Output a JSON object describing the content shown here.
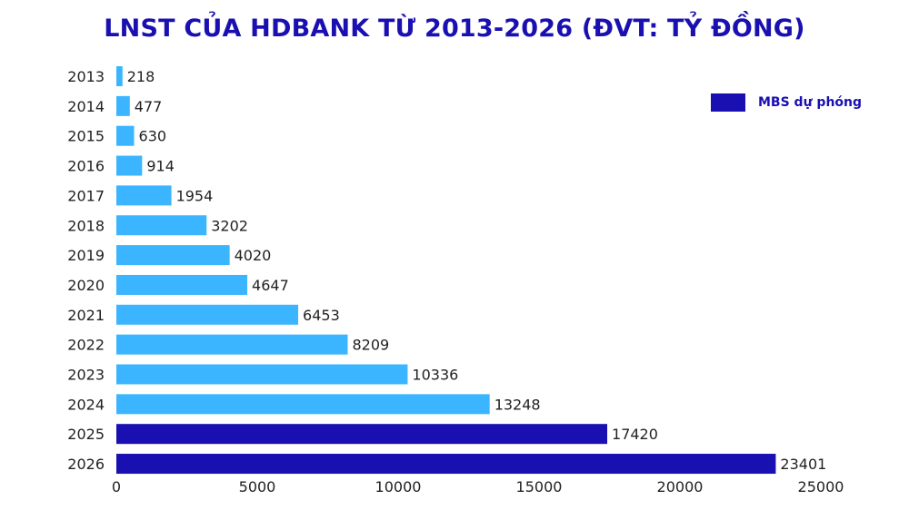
{
  "chart_data": {
    "type": "bar",
    "orientation": "horizontal",
    "title": "LNST CỦA HDBANK TỪ 2013-2026 (ĐVT: TỶ ĐỒNG)",
    "categories": [
      "2013",
      "2014",
      "2015",
      "2016",
      "2017",
      "2018",
      "2019",
      "2020",
      "2021",
      "2022",
      "2023",
      "2024",
      "2025",
      "2026"
    ],
    "values": [
      218,
      477,
      630,
      914,
      1954,
      3202,
      4020,
      4647,
      6453,
      8209,
      10336,
      13248,
      17420,
      23401
    ],
    "forecast_flags": [
      false,
      false,
      false,
      false,
      false,
      false,
      false,
      false,
      false,
      false,
      false,
      false,
      true,
      true
    ],
    "xlim": [
      0,
      25000
    ],
    "xticks": [
      "0",
      "5000",
      "10000",
      "15000",
      "20000",
      "25000"
    ],
    "legend": {
      "label": "MBS dự phóng",
      "position": "top-right"
    },
    "colors": {
      "actual": "#3bb5ff",
      "forecast": "#1a0fb0",
      "title": "#1a0fb0",
      "text": "#222222"
    },
    "grid": false
  }
}
